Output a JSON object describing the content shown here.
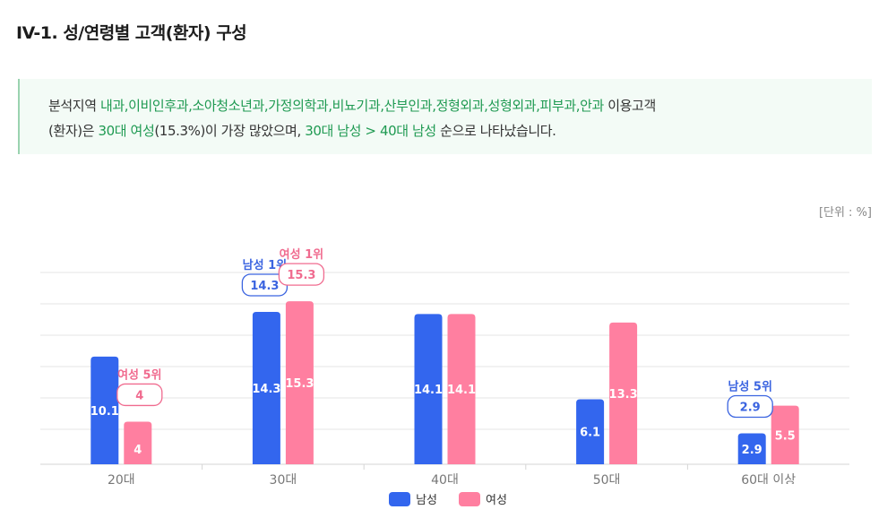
{
  "page": {
    "title": "IV-1. 성/연령별 고객(환자) 구성",
    "summary": {
      "p1": "분석지역 ",
      "depts": "내과,이비인후과,소아청소년과,가정의학과,비뇨기과,산부인과,정형외과,성형외과,피부과,안과",
      "p2": " 이용고객",
      "p3": "(환자)은 ",
      "top_group": "30대 여성",
      "top_value": "(15.3%)",
      "p4": "이 가장 많았으며, ",
      "ranking": "30대 남성 > 40대 남성",
      "p5": " 순으로 나타났습니다."
    },
    "unit_label": "[단위 : %]"
  },
  "colors": {
    "male": "#3366ee",
    "female": "#ff7fa0",
    "male_text": "#3b64e0",
    "female_text": "#f06b8f",
    "highlight_text": "#1f9a52"
  },
  "chart_data": {
    "type": "bar",
    "categories": [
      "20대",
      "30대",
      "40대",
      "50대",
      "60대 이상"
    ],
    "series": [
      {
        "name": "남성",
        "values": [
          10.1,
          14.3,
          14.1,
          6.1,
          2.9
        ]
      },
      {
        "name": "여성",
        "values": [
          4,
          15.3,
          14.1,
          13.3,
          5.5
        ]
      }
    ],
    "ylim": [
      0,
      18
    ],
    "grid": true,
    "legend": "bottom-center",
    "annotations": [
      {
        "series": 0,
        "index": 1,
        "label": "남성 1위",
        "value": "14.3"
      },
      {
        "series": 1,
        "index": 1,
        "label": "여성 1위",
        "value": "15.3"
      },
      {
        "series": 1,
        "index": 0,
        "label": "여성 5위",
        "value": "4"
      },
      {
        "series": 0,
        "index": 4,
        "label": "남성 5위",
        "value": "2.9"
      }
    ]
  }
}
